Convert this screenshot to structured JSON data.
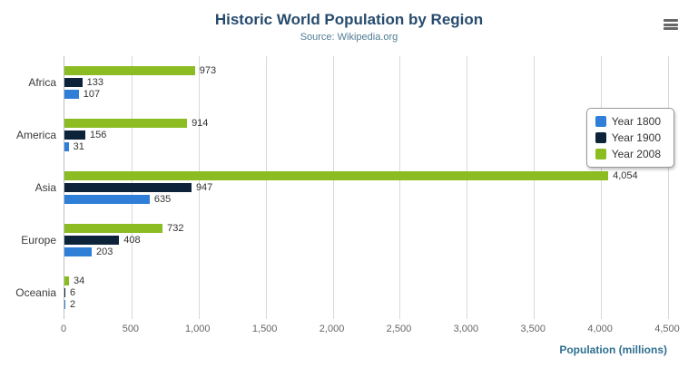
{
  "header": {
    "title": "Historic World Population by Region",
    "subtitle": "Source: Wikipedia.org"
  },
  "icons": {
    "menu": "hamburger-icon"
  },
  "colors": {
    "title": "#274b6d",
    "subtitle": "#4e7c95",
    "axis_title": "#2f6f8f",
    "gridline": "#d8d8d8",
    "axis_line": "#c0c0c0",
    "tick_label": "#666666",
    "data_label": "#333333"
  },
  "chart_data": {
    "type": "bar",
    "orientation": "horizontal",
    "title": "Historic World Population by Region",
    "subtitle": "Source: Wikipedia.org",
    "categories": [
      "Africa",
      "America",
      "Asia",
      "Europe",
      "Oceania"
    ],
    "series": [
      {
        "name": "Year 1800",
        "color": "#2f7ed8",
        "values": [
          107,
          31,
          635,
          203,
          2
        ]
      },
      {
        "name": "Year 1900",
        "color": "#0d233a",
        "values": [
          133,
          156,
          947,
          408,
          6
        ]
      },
      {
        "name": "Year 2008",
        "color": "#8bbc21",
        "values": [
          973,
          914,
          4054,
          732,
          34
        ]
      }
    ],
    "bar_display_order_top_to_bottom": [
      "Year 2008",
      "Year 1900",
      "Year 1800"
    ],
    "xlabel": "Population (millions)",
    "ylabel": "",
    "xlim": [
      0,
      4500
    ],
    "xticks": [
      0,
      500,
      1000,
      1500,
      2000,
      2500,
      3000,
      3500,
      4000,
      4500
    ],
    "xtick_labels": [
      "0",
      "500",
      "1,000",
      "1,500",
      "2,000",
      "2,500",
      "3,000",
      "3,500",
      "4,000",
      "4,500"
    ],
    "grid": true,
    "data_labels": true,
    "legend_position": "right"
  }
}
